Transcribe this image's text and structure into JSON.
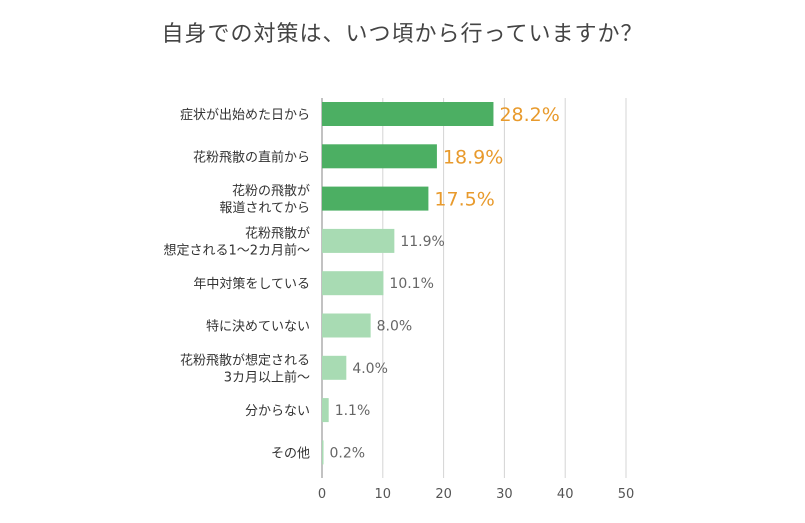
{
  "chart_data": {
    "type": "bar",
    "orientation": "horizontal",
    "title": "自身での対策は、いつ頃から行っていますか？",
    "categories": [
      "症状が出始めた日から",
      "花粉飛散の直前から",
      "花粉の飛散が\n報道されてから",
      "花粉飛散が\n想定される1〜2カ月前〜",
      "年中対策をしている",
      "特に決めていない",
      "花粉飛散が想定される\n3カ月以上前〜",
      "分からない",
      "その他"
    ],
    "values": [
      28.2,
      18.9,
      17.5,
      11.9,
      10.1,
      8.0,
      4.0,
      1.1,
      0.2
    ],
    "value_labels": [
      "28.2%",
      "18.9%",
      "17.5%",
      "11.9%",
      "10.1%",
      "8.0%",
      "4.0%",
      "1.1%",
      "0.2%"
    ],
    "xlim": [
      0,
      50
    ],
    "xticks": [
      "0",
      "10",
      "20",
      "30",
      "40",
      "50"
    ],
    "grid": true,
    "colors": {
      "top_bar": "#4caf63",
      "other_bar": "#a8dbb3",
      "top_label": "#e89a2c",
      "other_label": "#666666",
      "axis_text": "#555555",
      "grid": "#d4d4d4"
    },
    "highlight_top_n": 3
  }
}
